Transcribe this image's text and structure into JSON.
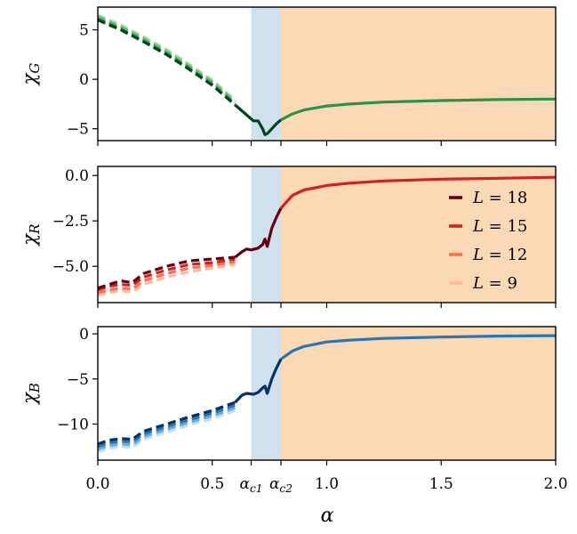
{
  "chart_data": {
    "type": "line",
    "shared_xlabel": "α",
    "xlim": [
      0.0,
      2.0
    ],
    "x_ticks": [
      {
        "v": 0.0,
        "t": "0.0"
      },
      {
        "v": 0.5,
        "t": "0.5"
      },
      {
        "v": 0.67,
        "t": "α_c1"
      },
      {
        "v": 0.8,
        "t": "α_c2"
      },
      {
        "v": 1.0,
        "t": "1.0"
      },
      {
        "v": 1.5,
        "t": "1.5"
      },
      {
        "v": 2.0,
        "t": "2.0"
      }
    ],
    "regions": [
      {
        "name": "critical-band",
        "from": 0.67,
        "to": 0.8,
        "color": "#cfe0ef"
      },
      {
        "name": "ordered-region",
        "from": 0.8,
        "to": 2.0,
        "color": "#fbd9b4"
      }
    ],
    "legend": {
      "position": "right",
      "entries": [
        {
          "label": "L = 18",
          "shade": 0
        },
        {
          "label": "L = 15",
          "shade": 1
        },
        {
          "label": "L = 12",
          "shade": 2
        },
        {
          "label": "L = 9",
          "shade": 3
        }
      ]
    },
    "panels": [
      {
        "id": "G",
        "ylabel": "χ_G",
        "ylim": [
          -6.2,
          7.3
        ],
        "yticks": [
          {
            "v": 5,
            "t": "5"
          },
          {
            "v": 0,
            "t": "0"
          },
          {
            "v": -5,
            "t": "−5"
          }
        ],
        "palette": [
          "#00441b",
          "#2a924a",
          "#5db96b",
          "#a7dca0"
        ],
        "dashed": [
          {
            "L": 18,
            "x": [
              0.0,
              0.1,
              0.2,
              0.3,
              0.4,
              0.5,
              0.6
            ],
            "y": [
              6.0,
              5.0,
              3.8,
              2.5,
              1.0,
              -0.6,
              -2.6
            ]
          },
          {
            "L": 15,
            "x": [
              0.0,
              0.1,
              0.2,
              0.3,
              0.4,
              0.5,
              0.6
            ],
            "y": [
              6.1,
              5.1,
              3.9,
              2.6,
              1.1,
              -0.5,
              -2.5
            ]
          },
          {
            "L": 12,
            "x": [
              0.0,
              0.1,
              0.2,
              0.3,
              0.4,
              0.5,
              0.6
            ],
            "y": [
              6.3,
              5.3,
              4.1,
              2.8,
              1.3,
              -0.3,
              -2.3
            ]
          },
          {
            "L": 9,
            "x": [
              0.0,
              0.1,
              0.2,
              0.3,
              0.4,
              0.5,
              0.6
            ],
            "y": [
              6.5,
              5.5,
              4.3,
              3.0,
              1.5,
              -0.1,
              -2.1
            ]
          }
        ],
        "solid_dark": {
          "x": [
            0.6,
            0.65,
            0.68,
            0.7,
            0.72,
            0.73,
            0.74,
            0.76,
            0.78,
            0.8
          ],
          "y": [
            -2.6,
            -3.6,
            -4.2,
            -4.2,
            -5.0,
            -5.6,
            -5.5,
            -5.0,
            -4.5,
            -4.1
          ]
        },
        "solid": {
          "x": [
            0.8,
            0.85,
            0.9,
            1.0,
            1.1,
            1.25,
            1.5,
            1.75,
            2.0
          ],
          "y": [
            -4.1,
            -3.5,
            -3.1,
            -2.7,
            -2.5,
            -2.3,
            -2.15,
            -2.05,
            -2.0
          ]
        }
      },
      {
        "id": "R",
        "ylabel": "χ_R",
        "ylim": [
          -7.0,
          0.5
        ],
        "yticks": [
          {
            "v": 0.0,
            "t": "0.0"
          },
          {
            "v": -2.5,
            "t": "−2.5"
          },
          {
            "v": -5.0,
            "t": "−5.0"
          }
        ],
        "palette": [
          "#67000d",
          "#d42020",
          "#fb7050",
          "#fcbba1"
        ],
        "dashed": [
          {
            "L": 18,
            "x": [
              0.0,
              0.05,
              0.1,
              0.15,
              0.2,
              0.3,
              0.4,
              0.5,
              0.6
            ],
            "y": [
              -6.2,
              -6.0,
              -5.8,
              -5.9,
              -5.4,
              -5.0,
              -4.7,
              -4.6,
              -4.5
            ]
          },
          {
            "L": 15,
            "x": [
              0.0,
              0.05,
              0.1,
              0.15,
              0.2,
              0.3,
              0.4,
              0.5,
              0.6
            ],
            "y": [
              -6.3,
              -6.1,
              -6.0,
              -6.05,
              -5.6,
              -5.2,
              -4.9,
              -4.8,
              -4.6
            ]
          },
          {
            "L": 12,
            "x": [
              0.0,
              0.05,
              0.1,
              0.15,
              0.2,
              0.3,
              0.4,
              0.5,
              0.6
            ],
            "y": [
              -6.45,
              -6.3,
              -6.2,
              -6.25,
              -5.8,
              -5.4,
              -5.1,
              -4.95,
              -4.75
            ]
          },
          {
            "L": 9,
            "x": [
              0.0,
              0.05,
              0.1,
              0.15,
              0.2,
              0.3,
              0.4,
              0.5,
              0.6
            ],
            "y": [
              -6.6,
              -6.45,
              -6.35,
              -6.4,
              -6.0,
              -5.6,
              -5.3,
              -5.1,
              -4.9
            ]
          }
        ],
        "solid_dark": {
          "x": [
            0.6,
            0.63,
            0.65,
            0.67,
            0.7,
            0.72,
            0.73,
            0.74,
            0.76,
            0.78,
            0.8
          ],
          "y": [
            -4.5,
            -4.2,
            -4.05,
            -4.1,
            -4.0,
            -3.8,
            -3.5,
            -3.9,
            -2.9,
            -2.3,
            -1.8
          ]
        },
        "solid": {
          "x": [
            0.8,
            0.85,
            0.9,
            1.0,
            1.1,
            1.25,
            1.5,
            1.75,
            2.0
          ],
          "y": [
            -1.8,
            -1.1,
            -0.8,
            -0.55,
            -0.42,
            -0.3,
            -0.2,
            -0.15,
            -0.1
          ]
        }
      },
      {
        "id": "B",
        "ylabel": "χ_B",
        "ylim": [
          -14.0,
          0.8
        ],
        "yticks": [
          {
            "v": 0,
            "t": "0"
          },
          {
            "v": -5,
            "t": "−5"
          },
          {
            "v": -10,
            "t": "−10"
          }
        ],
        "palette": [
          "#08306b",
          "#2676b8",
          "#6aaed6",
          "#c6dbef"
        ],
        "dashed": [
          {
            "L": 18,
            "x": [
              0.0,
              0.05,
              0.1,
              0.15,
              0.2,
              0.3,
              0.4,
              0.5,
              0.6
            ],
            "y": [
              -12.2,
              -11.8,
              -11.6,
              -11.7,
              -10.8,
              -10.0,
              -9.2,
              -8.5,
              -7.6
            ]
          },
          {
            "L": 15,
            "x": [
              0.0,
              0.05,
              0.1,
              0.15,
              0.2,
              0.3,
              0.4,
              0.5,
              0.6
            ],
            "y": [
              -12.5,
              -12.1,
              -11.9,
              -12.0,
              -11.1,
              -10.3,
              -9.5,
              -8.8,
              -7.9
            ]
          },
          {
            "L": 12,
            "x": [
              0.0,
              0.05,
              0.1,
              0.15,
              0.2,
              0.3,
              0.4,
              0.5,
              0.6
            ],
            "y": [
              -12.8,
              -12.4,
              -12.2,
              -12.3,
              -11.4,
              -10.6,
              -9.8,
              -9.1,
              -8.2
            ]
          },
          {
            "L": 9,
            "x": [
              0.0,
              0.05,
              0.1,
              0.15,
              0.2,
              0.3,
              0.4,
              0.5,
              0.6
            ],
            "y": [
              -13.1,
              -12.7,
              -12.5,
              -12.6,
              -11.7,
              -10.9,
              -10.1,
              -9.4,
              -8.5
            ]
          }
        ],
        "solid_dark": {
          "x": [
            0.6,
            0.63,
            0.65,
            0.68,
            0.7,
            0.72,
            0.73,
            0.74,
            0.76,
            0.78,
            0.8
          ],
          "y": [
            -7.6,
            -6.8,
            -6.6,
            -6.7,
            -6.5,
            -6.0,
            -5.8,
            -6.6,
            -5.0,
            -3.8,
            -2.8
          ]
        },
        "solid": {
          "x": [
            0.8,
            0.85,
            0.9,
            1.0,
            1.1,
            1.25,
            1.5,
            1.75,
            2.0
          ],
          "y": [
            -2.8,
            -1.9,
            -1.4,
            -0.9,
            -0.7,
            -0.5,
            -0.35,
            -0.25,
            -0.2
          ]
        }
      }
    ]
  }
}
